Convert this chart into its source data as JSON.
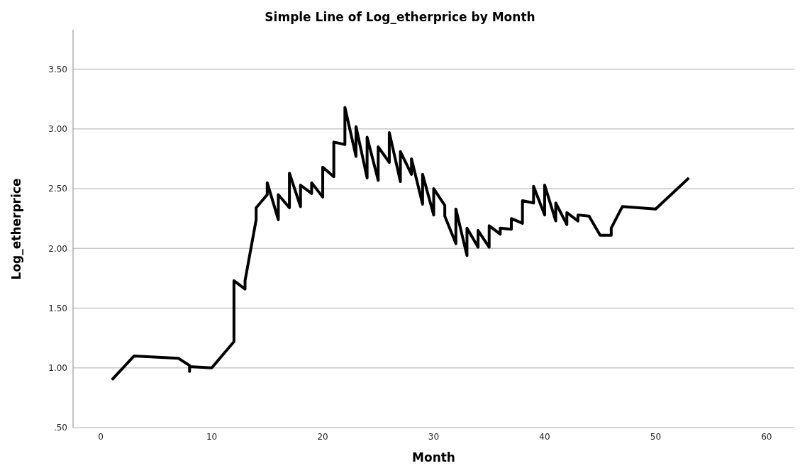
{
  "chart_data": {
    "type": "line",
    "title": "Simple Line of Log_etherprice by Month",
    "xlabel": "Month",
    "ylabel": "Log_etherprice",
    "x": [
      1,
      3,
      7,
      8,
      8,
      8,
      10,
      12,
      12,
      13,
      13,
      14,
      14,
      15,
      15,
      16,
      16,
      17,
      17,
      18,
      18,
      19,
      19,
      20,
      20,
      21,
      21,
      22,
      22,
      23,
      23,
      24,
      24,
      25,
      25,
      26,
      26,
      27,
      27,
      28,
      28,
      29,
      29,
      30,
      30,
      31,
      31,
      32,
      32,
      33,
      33,
      34,
      34,
      35,
      35,
      36,
      36,
      37,
      37,
      38,
      38,
      39,
      39,
      40,
      40,
      41,
      41,
      42,
      42,
      43,
      43,
      44,
      45,
      46,
      46,
      47,
      50,
      53
    ],
    "series": [
      {
        "color": "#000000",
        "values": [
          0.9,
          1.1,
          1.08,
          1.02,
          0.97,
          1.01,
          1.0,
          1.22,
          1.73,
          1.66,
          1.73,
          2.24,
          2.34,
          2.45,
          2.55,
          2.24,
          2.45,
          2.34,
          2.63,
          2.35,
          2.53,
          2.46,
          2.55,
          2.43,
          2.68,
          2.6,
          2.89,
          2.87,
          3.18,
          2.77,
          3.02,
          2.59,
          2.93,
          2.57,
          2.85,
          2.72,
          2.97,
          2.56,
          2.81,
          2.62,
          2.75,
          2.37,
          2.62,
          2.28,
          2.5,
          2.36,
          2.27,
          2.04,
          2.33,
          1.94,
          2.17,
          2.01,
          2.15,
          2.01,
          2.19,
          2.12,
          2.17,
          2.16,
          2.25,
          2.21,
          2.4,
          2.38,
          2.52,
          2.28,
          2.53,
          2.23,
          2.38,
          2.2,
          2.3,
          2.23,
          2.28,
          2.27,
          2.11,
          2.11,
          2.17,
          2.35,
          2.33,
          2.59
        ]
      }
    ],
    "xlim": [
      -2.5,
      62.5
    ],
    "xticks": [
      0,
      10,
      20,
      30,
      40,
      50,
      60
    ],
    "ylim": [
      0.5,
      3.83
    ],
    "yticks": [
      {
        "value": 0.5,
        "label": ".50"
      },
      {
        "value": 1,
        "label": "1.00"
      },
      {
        "value": 1.5,
        "label": "1.50"
      },
      {
        "value": 2,
        "label": "2.00"
      },
      {
        "value": 2.5,
        "label": "2.50"
      },
      {
        "value": 3,
        "label": "3.00"
      },
      {
        "value": 3.5,
        "label": "3.50"
      }
    ],
    "grid": "y",
    "marker": "none",
    "line_style": "solid"
  }
}
